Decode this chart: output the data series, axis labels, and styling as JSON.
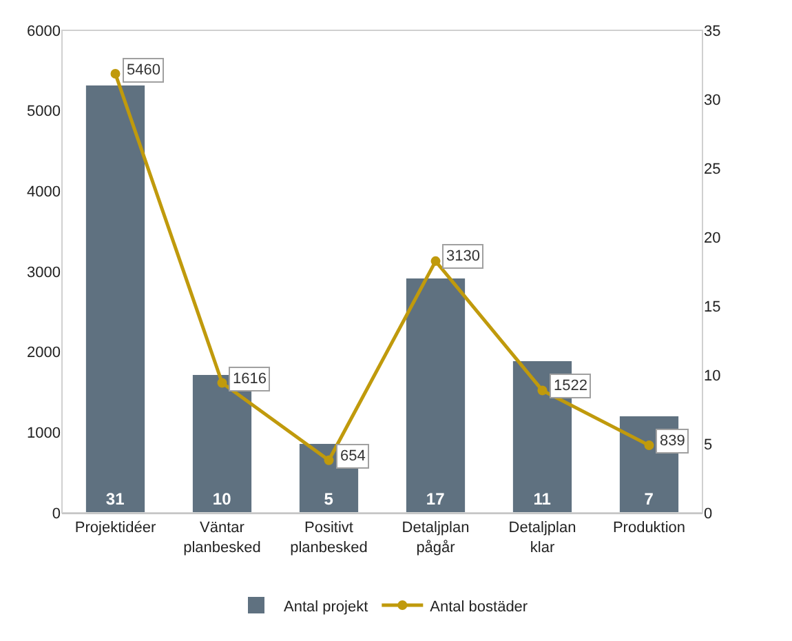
{
  "chart_data": {
    "type": "bar",
    "categories": [
      "Projektidéer",
      "Väntar planbesked",
      "Positivt planbesked",
      "Detaljplan pågår",
      "Detaljplan klar",
      "Produktion"
    ],
    "series": [
      {
        "name": "Antal projekt",
        "axis": "y2",
        "color": "#5f7180",
        "values": [
          31,
          10,
          5,
          17,
          11,
          7
        ]
      },
      {
        "name": "Antal bostäder",
        "type": "line",
        "axis": "y",
        "color": "#c09a0c",
        "values": [
          5460,
          1616,
          654,
          3130,
          1522,
          839
        ]
      }
    ],
    "ylim": [
      0,
      6000
    ],
    "yticks": [
      0,
      1000,
      2000,
      3000,
      4000,
      5000,
      6000
    ],
    "y2lim": [
      0,
      35
    ],
    "y2ticks": [
      0,
      5,
      10,
      15,
      20,
      25,
      30,
      35
    ],
    "data_labels": true,
    "legend": "bottom",
    "marker": "circle",
    "grid": false
  }
}
